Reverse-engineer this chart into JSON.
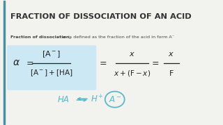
{
  "title": "FRACTION OF DISSOCIATION OF AN ACID",
  "subtitle_bold": "Fraction of dissociation, α",
  "subtitle_regular": " is defined as the fraction of the acid in form A⁻",
  "box_color": "#cce8f4",
  "title_color": "#333333",
  "text_color": "#444444",
  "formula_color": "#222222",
  "hand_color": "#5bb8c9",
  "accent_left_color": "#4a90a4",
  "background_color": "#f2f2ee"
}
